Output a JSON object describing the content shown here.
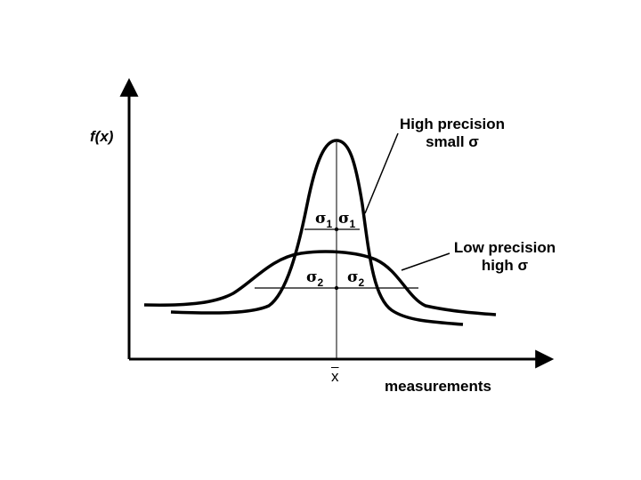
{
  "labels": {
    "y_axis": "f(x)",
    "x_axis": "measurements",
    "mean": "x",
    "high_precision_line1": "High precision",
    "high_precision_line2": "small σ",
    "low_precision_line1": "Low precision",
    "low_precision_line2": "high σ",
    "sigma_symbol": "σ",
    "sub_one": "1",
    "sub_two": "2"
  },
  "colors": {
    "ink": "#000000",
    "background": "#ffffff"
  }
}
